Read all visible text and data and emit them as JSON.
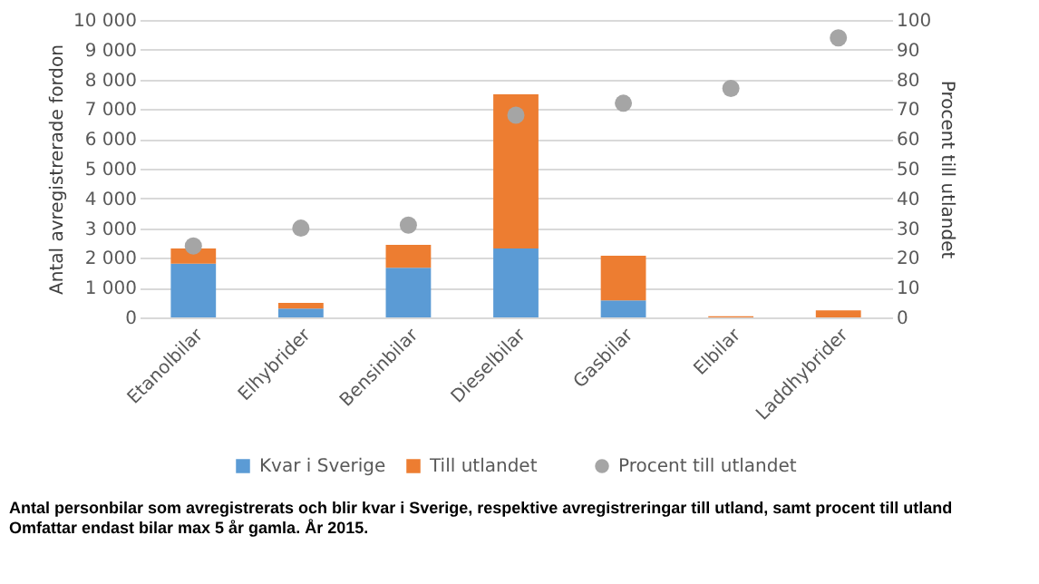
{
  "chart_data": {
    "type": "bar",
    "stacked": true,
    "ylabel": "Antal avregistrerade fordon",
    "y2label": "Procent till utlandet",
    "categories": [
      "Etanolbilar",
      "Elhybrider",
      "Bensinbilar",
      "Dieselbilar",
      "Gasbilar",
      "Elbilar",
      "Laddhybrider"
    ],
    "series": [
      {
        "name": "Kvar i Sverige",
        "color": "#5b9bd5",
        "values": [
          1810,
          300,
          1670,
          2320,
          570,
          null,
          null
        ]
      },
      {
        "name": "Till utlandet",
        "color": "#ed7d31",
        "values": [
          510,
          190,
          770,
          5180,
          1500,
          40,
          240
        ]
      },
      {
        "name": "Procent till utlandet",
        "type": "scatter",
        "axis": "y2",
        "color": "#a5a5a5",
        "values": [
          24,
          30,
          31,
          68,
          72,
          77,
          94
        ]
      }
    ],
    "ylim": [
      0,
      10000
    ],
    "yticks": [
      0,
      {
        "value": 1000,
        "label": "1 000"
      },
      {
        "value": 2000,
        "label": "2 000"
      },
      {
        "value": 3000,
        "label": "3 000"
      },
      {
        "value": 4000,
        "label": "4 000"
      },
      {
        "value": 5000,
        "label": "5 000"
      },
      {
        "value": 6000,
        "label": "6 000"
      },
      {
        "value": 7000,
        "label": "7 000"
      },
      {
        "value": 8000,
        "label": "8 000"
      },
      {
        "value": 9000,
        "label": "9 000"
      },
      {
        "value": 10000,
        "label": "10 000"
      }
    ],
    "y2lim": [
      0,
      100
    ],
    "y2ticks": [
      0,
      10,
      20,
      30,
      40,
      50,
      60,
      70,
      80,
      90,
      100
    ],
    "grid": "y",
    "legend": "bottom",
    "marker": "circle",
    "annotations": [
      "Antal personbilar som avregistrerats och blir kvar i Sverige, respektive avregistreringar till utland, samt procent till utland",
      "Omfattar endast bilar max 5 år gamla. År 2015."
    ]
  }
}
